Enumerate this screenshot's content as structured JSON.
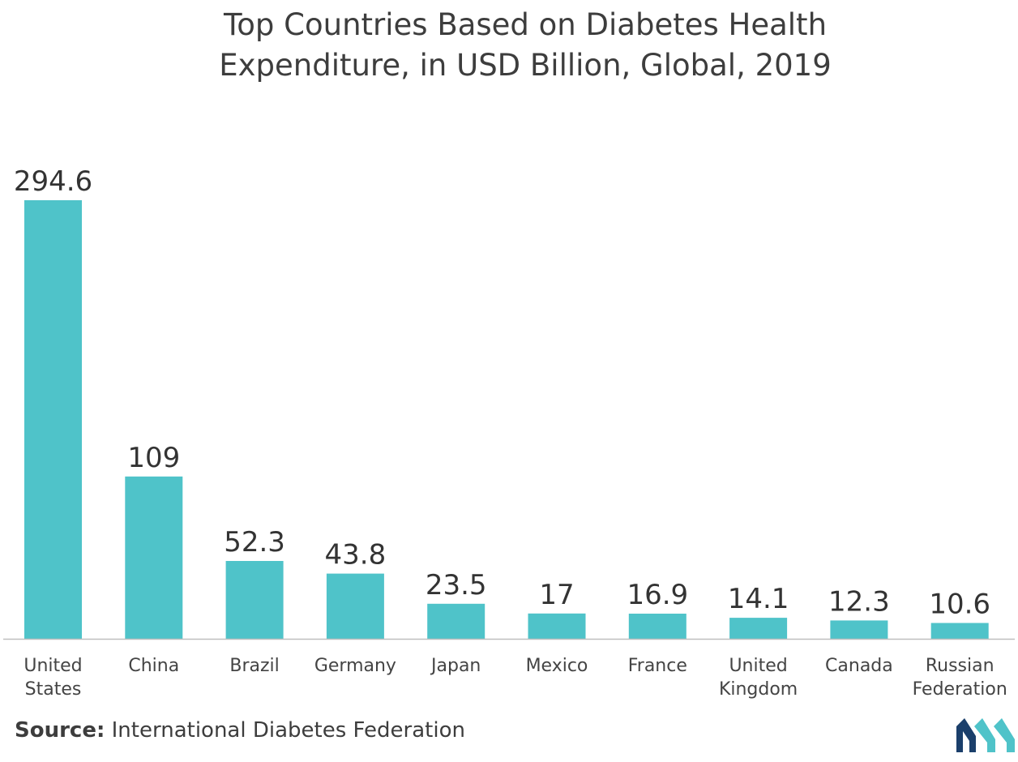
{
  "chart_data": {
    "type": "bar",
    "title": [
      "Top Countries Based on Diabetes Health",
      "Expenditure, in USD Billion, Global, 2019"
    ],
    "categories": [
      [
        "United",
        "States"
      ],
      [
        "China"
      ],
      [
        "Brazil"
      ],
      [
        "Germany"
      ],
      [
        "Japan"
      ],
      [
        "Mexico"
      ],
      [
        "France"
      ],
      [
        "United",
        "Kingdom"
      ],
      [
        "Canada"
      ],
      [
        "Russian",
        "Federation"
      ]
    ],
    "values": [
      294.6,
      109,
      52.3,
      43.8,
      23.5,
      17,
      16.9,
      14.1,
      12.3,
      10.6
    ],
    "value_labels": [
      "294.6",
      "109",
      "52.3",
      "43.8",
      "23.5",
      "17",
      "16.9",
      "14.1",
      "12.3",
      "10.6"
    ],
    "xlabel": "",
    "ylabel": "",
    "ylim": [
      0,
      294.6
    ],
    "grid": false,
    "legend": "none",
    "bar_color": "#4fc3c9",
    "axis_color": "#bfbfbf"
  },
  "source": {
    "label": "Source:",
    "text": "International Diabetes Federation"
  },
  "logo": {
    "icon": "mordor-intelligence-logo-icon",
    "colors": [
      "#1b3f6b",
      "#4fc3c9"
    ]
  }
}
